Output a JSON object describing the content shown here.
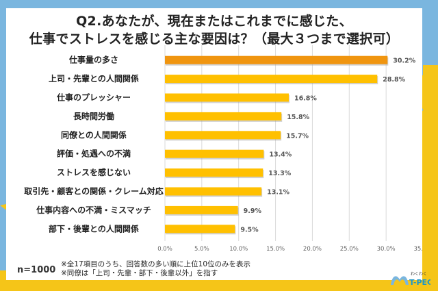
{
  "chart_data": {
    "type": "bar",
    "orientation": "horizontal",
    "title": "Q2.あなたが、現在またはこれまでに感じた、\n仕事でストレスを感じる主な要因は？（最大３つまで選択可）",
    "title_lines": [
      "Q2.あなたが、現在またはこれまでに感じた、",
      "仕事でストレスを感じる主な要因は？（最大３つまで選択可）"
    ],
    "categories": [
      "仕事量の多さ",
      "上司・先輩との人間関係",
      "仕事のプレッシャー",
      "長時間労働",
      "同僚との人間関係",
      "評価・処遇への不満",
      "ストレスを感じない",
      "取引先・顧客との関係・クレーム対応",
      "仕事内容への不満・ミスマッチ",
      "部下・後輩との人間関係"
    ],
    "values": [
      30.2,
      28.8,
      16.8,
      15.8,
      15.7,
      13.4,
      13.3,
      13.1,
      9.9,
      9.5
    ],
    "value_labels": [
      "30.2%",
      "28.8%",
      "16.8%",
      "15.8%",
      "15.7%",
      "13.4%",
      "13.3%",
      "13.1%",
      "9.9%",
      "9.5%"
    ],
    "xlim": [
      0,
      35
    ],
    "xticks": [
      0,
      5,
      10,
      15,
      20,
      25,
      30,
      35
    ],
    "xtick_labels": [
      "0.0%",
      "5.0%",
      "10.0%",
      "15.0%",
      "20.0%",
      "25.0%",
      "30.0%",
      "35.0%"
    ],
    "xlabel": "",
    "ylabel": "",
    "grid": "vertical",
    "legend": "none",
    "highlight_index": 0,
    "colors": {
      "highlight": "#f0950f",
      "bar": "#ffc000",
      "grid": "#d9d9d9"
    }
  },
  "footer": {
    "sample_size": "n=1000",
    "notes": [
      "※全17項目のうち、回答数の多い順に上位10位のみを表示",
      "※同僚は「上司・先輩・部下・後輩以外」を指す"
    ]
  },
  "logo": {
    "small_text": "わくわく",
    "brand": "T-PEC"
  },
  "frame_colors": {
    "blue": "#7ab6df",
    "yellow": "#f5c518",
    "card": "#ffffff"
  }
}
